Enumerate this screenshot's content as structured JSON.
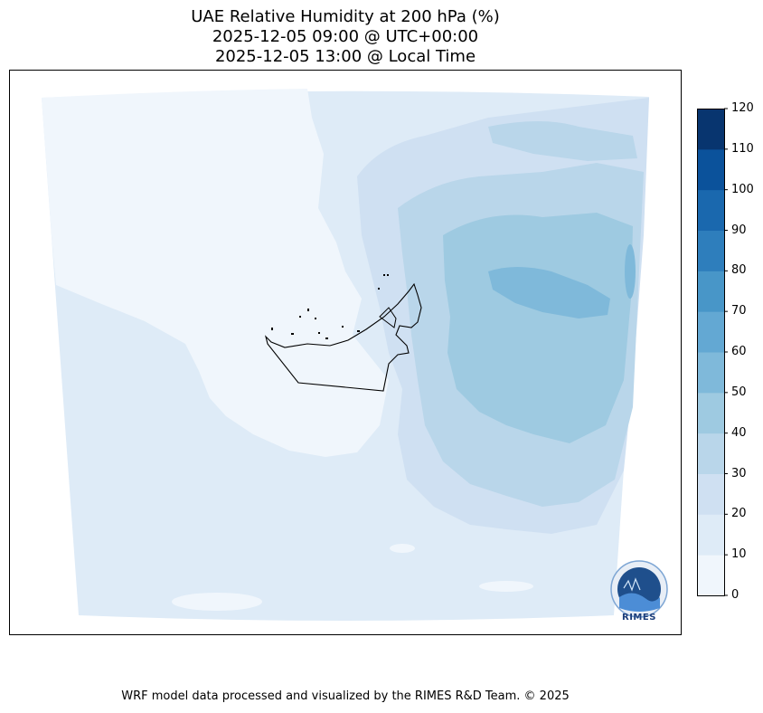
{
  "title": {
    "line1": "UAE Relative Humidity at 200 hPa (%)",
    "line2": "2025-12-05 09:00 @ UTC+00:00",
    "line3": "2025-12-05 13:00 @ Local Time"
  },
  "colorbar": {
    "ticks": [
      "0",
      "10",
      "20",
      "30",
      "40",
      "50",
      "60",
      "70",
      "80",
      "90",
      "100",
      "110",
      "120"
    ],
    "colors": [
      "#f0f6fc",
      "#deebf7",
      "#cfe0f2",
      "#b9d6ea",
      "#9ecae1",
      "#7fb9da",
      "#63a8d3",
      "#4896c8",
      "#2e7ebc",
      "#1a68ae",
      "#0b529b",
      "#08356f"
    ]
  },
  "logo": {
    "text": "RIMES"
  },
  "credit": "WRF model data processed and visualized by the RIMES R&D Team. © 2025"
}
